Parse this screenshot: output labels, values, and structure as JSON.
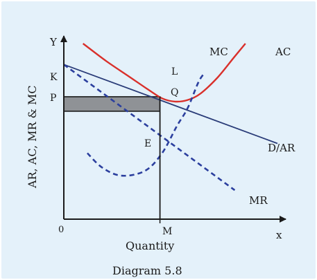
{
  "chart_data": {
    "type": "line",
    "title": "",
    "caption": "Diagram 5.8",
    "xlabel": "Quantity",
    "ylabel": "AR, AC, MR & MC",
    "x_axis_letter": "x",
    "y_axis_letter": "Y",
    "origin_label": "0",
    "xlim": [
      0,
      100
    ],
    "ylim": [
      0,
      100
    ],
    "grid": false,
    "colors": {
      "background": "#e4f1fa",
      "ac": "#d9302b",
      "demand": "#2a3c78",
      "mc": "#2b3f9e",
      "mr": "#2b3f9e",
      "axes": "#1a1a1a",
      "rect": "#8f9296"
    },
    "series": [
      {
        "name": "AC",
        "style": "solid",
        "points": [
          [
            9,
            109
          ],
          [
            20,
            98
          ],
          [
            30,
            89
          ],
          [
            40,
            80
          ],
          [
            46,
            75
          ],
          [
            52,
            73
          ],
          [
            58,
            74
          ],
          [
            64,
            78
          ],
          [
            72,
            88
          ],
          [
            80,
            101
          ],
          [
            85,
            109
          ]
        ]
      },
      {
        "name": "D/AR",
        "style": "solid",
        "points": [
          [
            0,
            96
          ],
          [
            100,
            47
          ]
        ]
      },
      {
        "name": "MC",
        "style": "dashed",
        "points": [
          [
            11,
            41
          ],
          [
            18,
            32
          ],
          [
            27,
            27
          ],
          [
            38,
            30
          ],
          [
            46,
            41
          ],
          [
            53,
            58
          ],
          [
            58,
            69
          ],
          [
            63,
            85
          ],
          [
            66,
            91
          ]
        ]
      },
      {
        "name": "MR",
        "style": "dashed",
        "points": [
          [
            0,
            96
          ],
          [
            80,
            18
          ]
        ]
      }
    ],
    "points": {
      "K": 76,
      "P": 67,
      "L": "L",
      "Q": "Q",
      "E": "E",
      "M": 45
    },
    "annotations": [
      "K",
      "P",
      "L",
      "Q",
      "E",
      "M",
      "MC",
      "AC",
      "D/AR",
      "MR"
    ],
    "shaded_rect": {
      "x": [
        0,
        45
      ],
      "y": [
        67,
        76
      ]
    }
  }
}
